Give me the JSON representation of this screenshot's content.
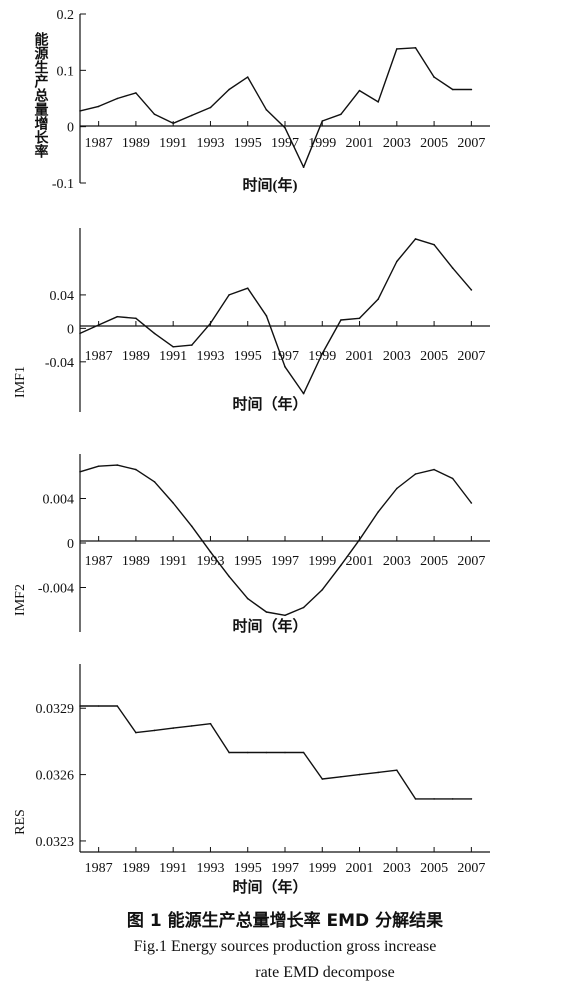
{
  "chart_data": [
    {
      "type": "line",
      "ylabel": "能源生产总量增长率",
      "xlabel": "时间(年)",
      "ylim": [
        -0.1,
        0.2
      ],
      "yticks": [
        "0.2",
        "0.1",
        "0",
        "-0.1"
      ],
      "ytick_values": [
        0.2,
        0.1,
        0,
        -0.1
      ],
      "xticks": [
        "1987",
        "1989",
        "1991",
        "1993",
        "1995",
        "1997",
        "1999",
        "2001",
        "2003",
        "2005",
        "2007"
      ],
      "xlim": [
        1986,
        2008
      ],
      "x": [
        1986,
        1987,
        1988,
        1989,
        1990,
        1991,
        1992,
        1993,
        1994,
        1995,
        1996,
        1997,
        1998,
        1999,
        2000,
        2001,
        2002,
        2003,
        2004,
        2005,
        2006,
        2007
      ],
      "values": [
        0.028,
        0.036,
        0.05,
        0.06,
        0.022,
        0.006,
        0.02,
        0.034,
        0.066,
        0.088,
        0.03,
        -0.002,
        -0.072,
        0.01,
        0.022,
        0.064,
        0.044,
        0.138,
        0.14,
        0.088,
        0.066,
        0.066
      ]
    },
    {
      "type": "line",
      "ylabel": "IMF1",
      "xlabel": "时间（年）",
      "ylim": [
        -0.1,
        0.12
      ],
      "yticks": [
        "0.04",
        "0",
        "-0.04"
      ],
      "ytick_values": [
        0.04,
        0,
        -0.04
      ],
      "xticks": [
        "1987",
        "1989",
        "1991",
        "1993",
        "1995",
        "1997",
        "1999",
        "2001",
        "2003",
        "2005",
        "2007"
      ],
      "xlim": [
        1986,
        2008
      ],
      "x": [
        1986,
        1987,
        1988,
        1989,
        1990,
        1991,
        1992,
        1993,
        1994,
        1995,
        1996,
        1997,
        1998,
        1999,
        2000,
        2001,
        2002,
        2003,
        2004,
        2005,
        2006,
        2007
      ],
      "values": [
        -0.006,
        0.004,
        0.014,
        0.012,
        -0.006,
        -0.022,
        -0.02,
        0.006,
        0.04,
        0.048,
        0.015,
        -0.046,
        -0.078,
        -0.03,
        0.01,
        0.012,
        0.035,
        0.08,
        0.107,
        0.1,
        0.072,
        0.046
      ]
    },
    {
      "type": "line",
      "ylabel": "IMF2",
      "xlabel": "时间（年）",
      "ylim": [
        -0.008,
        0.008
      ],
      "yticks": [
        "0.004",
        "0",
        "-0.004"
      ],
      "ytick_values": [
        0.004,
        0,
        -0.004
      ],
      "xticks": [
        "1987",
        "1989",
        "1991",
        "1993",
        "1995",
        "1997",
        "1999",
        "2001",
        "2003",
        "2005",
        "2007"
      ],
      "xlim": [
        1986,
        2008
      ],
      "x": [
        1986,
        1987,
        1988,
        1989,
        1990,
        1991,
        1992,
        1993,
        1994,
        1995,
        1996,
        1997,
        1998,
        1999,
        2000,
        2001,
        2002,
        2003,
        2004,
        2005,
        2006,
        2007
      ],
      "values": [
        0.0064,
        0.0069,
        0.007,
        0.0066,
        0.0055,
        0.0036,
        0.0015,
        -0.0008,
        -0.003,
        -0.005,
        -0.0062,
        -0.0065,
        -0.0058,
        -0.0042,
        -0.002,
        0.0003,
        0.0028,
        0.0049,
        0.0062,
        0.0066,
        0.0058,
        0.0036
      ]
    },
    {
      "type": "line",
      "ylabel": "RES",
      "xlabel": "时间（年）",
      "ylim": [
        0.03225,
        0.0331
      ],
      "yticks": [
        "0.0329",
        "0.0326",
        "0.0323"
      ],
      "ytick_values": [
        0.0329,
        0.0326,
        0.0323
      ],
      "xticks": [
        "1987",
        "1989",
        "1991",
        "1993",
        "1995",
        "1997",
        "1999",
        "2001",
        "2003",
        "2005",
        "2007"
      ],
      "xlim": [
        1986,
        2008
      ],
      "x": [
        1986,
        1987,
        1988,
        1989,
        1990,
        1991,
        1992,
        1993,
        1994,
        1995,
        1996,
        1997,
        1998,
        1999,
        2000,
        2001,
        2002,
        2003,
        2004,
        2005,
        2006,
        2007
      ],
      "values": [
        0.03291,
        0.03291,
        0.03291,
        0.03279,
        0.0328,
        0.03281,
        0.03282,
        0.03283,
        0.0327,
        0.0327,
        0.0327,
        0.0327,
        0.0327,
        0.03258,
        0.03259,
        0.0326,
        0.03261,
        0.03262,
        0.03249,
        0.03249,
        0.03249,
        0.03249
      ]
    }
  ],
  "caption": {
    "cn": "图 1    能源生产总量增长率 EMD 分解结果",
    "en_line1": "Fig.1    Energy sources production gross increase",
    "en_line2": "rate EMD decompose"
  }
}
